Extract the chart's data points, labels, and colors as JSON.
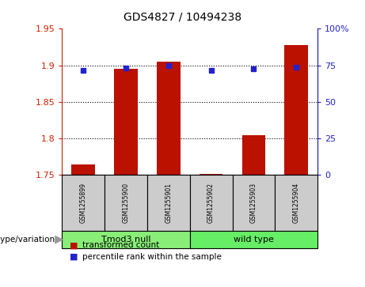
{
  "title": "GDS4827 / 10494238",
  "samples": [
    "GSM1255899",
    "GSM1255900",
    "GSM1255901",
    "GSM1255902",
    "GSM1255903",
    "GSM1255904"
  ],
  "bar_values": [
    1.765,
    1.895,
    1.905,
    1.752,
    1.805,
    1.928
  ],
  "percentile_values": [
    71.5,
    73,
    75,
    71.5,
    72.5,
    73.5
  ],
  "ylim_left": [
    1.75,
    1.95
  ],
  "ylim_right": [
    0,
    100
  ],
  "yticks_left": [
    1.75,
    1.8,
    1.85,
    1.9,
    1.95
  ],
  "yticks_left_labels": [
    "1.75",
    "1.8",
    "1.85",
    "1.9",
    "1.95"
  ],
  "yticks_right": [
    0,
    25,
    50,
    75,
    100
  ],
  "yticks_right_labels": [
    "0",
    "25",
    "50",
    "75",
    "100%"
  ],
  "bar_color": "#bb1100",
  "dot_color": "#2222cc",
  "group1_label": "Tmod3 null",
  "group2_label": "wild type",
  "group1_color": "#88ee77",
  "group2_color": "#66ee66",
  "group_label": "genotype/variation",
  "legend_bar": "transformed count",
  "legend_dot": "percentile rank within the sample",
  "bar_width": 0.55,
  "baseline": 1.75,
  "tick_color_left": "#cc2200",
  "tick_color_right": "#2222cc",
  "sample_box_color": "#cccccc",
  "n_group1": 3,
  "n_group2": 3,
  "grid_yticks": [
    1.75,
    1.8,
    1.85,
    1.9
  ]
}
